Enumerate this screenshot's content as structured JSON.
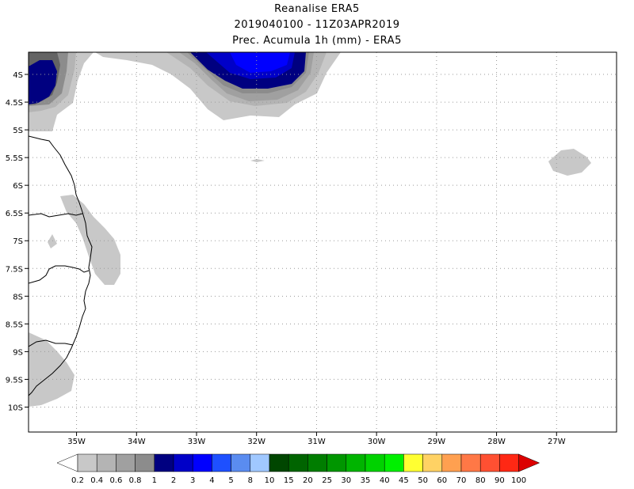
{
  "header": {
    "line1": "Reanalise ERA5",
    "line2": "2019040100 - 11Z03APR2019",
    "line3": "Prec. Acumula 1h (mm) - ERA5"
  },
  "map": {
    "lon_range": [
      -35.8,
      -26.0
    ],
    "lat_range": [
      -10.45,
      -3.6
    ],
    "lon_ticks": [
      {
        "value": -35,
        "label": "35W"
      },
      {
        "value": -34,
        "label": "34W"
      },
      {
        "value": -33,
        "label": "33W"
      },
      {
        "value": -32,
        "label": "32W"
      },
      {
        "value": -31,
        "label": "31W"
      },
      {
        "value": -30,
        "label": "30W"
      },
      {
        "value": -29,
        "label": "29W"
      },
      {
        "value": -28,
        "label": "28W"
      },
      {
        "value": -27,
        "label": "27W"
      }
    ],
    "lat_ticks": [
      {
        "value": -4.0,
        "label": "4S"
      },
      {
        "value": -4.5,
        "label": "4.5S"
      },
      {
        "value": -5.0,
        "label": "5S"
      },
      {
        "value": -5.5,
        "label": "5.5S"
      },
      {
        "value": -6.0,
        "label": "6S"
      },
      {
        "value": -6.5,
        "label": "6.5S"
      },
      {
        "value": -7.0,
        "label": "7S"
      },
      {
        "value": -7.5,
        "label": "7.5S"
      },
      {
        "value": -8.0,
        "label": "8S"
      },
      {
        "value": -8.5,
        "label": "8.5S"
      },
      {
        "value": -9.0,
        "label": "9S"
      },
      {
        "value": -9.5,
        "label": "9.5S"
      },
      {
        "value": -10.0,
        "label": "10S"
      }
    ],
    "grid": true
  },
  "colorbar": {
    "labels": [
      "0.2",
      "0.4",
      "0.6",
      "0.8",
      "1",
      "2",
      "3",
      "4",
      "5",
      "8",
      "10",
      "15",
      "20",
      "25",
      "30",
      "35",
      "40",
      "45",
      "50",
      "60",
      "70",
      "80",
      "90",
      "100"
    ],
    "colors": [
      "#c8c8c8",
      "#b4b4b4",
      "#a0a0a0",
      "#8c8c8c",
      "#000080",
      "#0000c8",
      "#0000ff",
      "#1e50ff",
      "#5a8cf0",
      "#a0c8ff",
      "#004600",
      "#006400",
      "#007d00",
      "#009600",
      "#00b400",
      "#00d200",
      "#00f000",
      "#ffff32",
      "#ffd264",
      "#ffa050",
      "#ff7846",
      "#ff5032",
      "#ff2814",
      "#dc0000"
    ],
    "under_color": "#ffffff",
    "over_color": "#dc0000"
  }
}
